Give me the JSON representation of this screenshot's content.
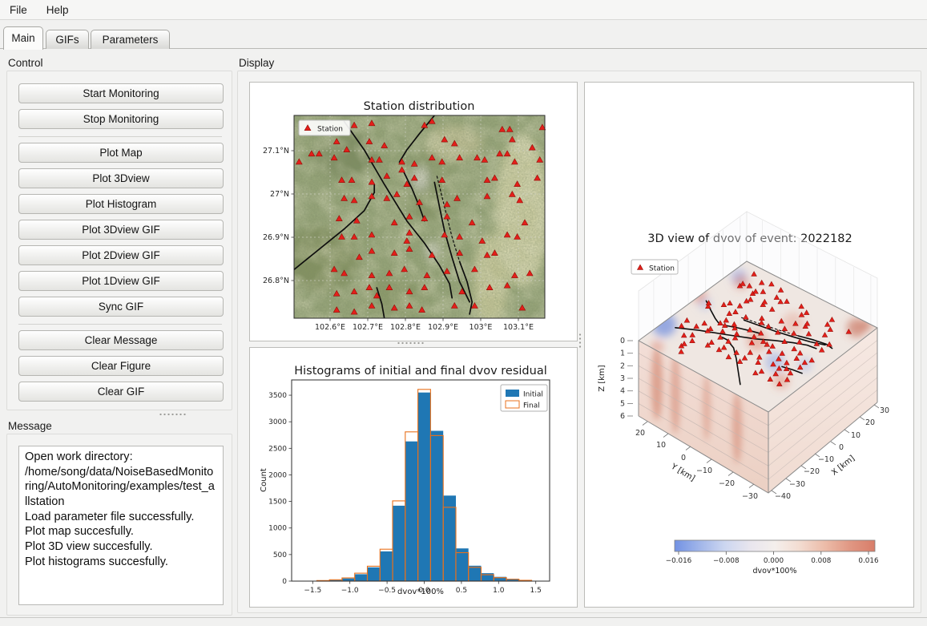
{
  "menu": {
    "items": [
      "File",
      "Help"
    ]
  },
  "tabs": [
    "Main",
    "GIFs",
    "Parameters"
  ],
  "active_tab": "Main",
  "sections": {
    "control": "Control",
    "message": "Message",
    "display": "Display"
  },
  "control": {
    "buttons": [
      "Start Monitoring",
      "Stop Monitoring",
      "Plot Map",
      "Plot 3Dview",
      "Plot Histogram",
      "Plot 3Dview GIF",
      "Plot 2Dview GIF",
      "Plot 1Dview GIF",
      "Sync GIF",
      "Clear Message",
      "Clear Figure",
      "Clear GIF"
    ]
  },
  "message": {
    "lines": [
      "Open work directory: /home/song/data/NoiseBasedMonitoring/AutoMonitoring/examples/test_allstation",
      "Load parameter file successfully.",
      "Plot map succesfully.",
      "Plot 3D view succesfully.",
      "Plot histograms succesfully."
    ]
  },
  "chart_data": [
    {
      "type": "scatter",
      "title": "Station distribution",
      "legend": [
        "Station"
      ],
      "x_tick_labels": [
        "102.6°E",
        "102.7°E",
        "102.8°E",
        "102.9°E",
        "103°E",
        "103.1°E"
      ],
      "y_tick_labels": [
        "27.1°N",
        "27°N",
        "26.9°N",
        "26.8°N"
      ],
      "marker": "red-triangle",
      "colors": {
        "station": "#e41f1a",
        "station_edge": "#8f0f08",
        "fault": "#0d0d0d"
      },
      "stations": [
        [
          0.24,
          0.05
        ],
        [
          0.31,
          0.04
        ],
        [
          0.52,
          0.05
        ],
        [
          0.55,
          0.03
        ],
        [
          0.83,
          0.07
        ],
        [
          0.86,
          0.07
        ],
        [
          0.99,
          0.06
        ],
        [
          0.17,
          0.13
        ],
        [
          0.3,
          0.13
        ],
        [
          0.36,
          0.15
        ],
        [
          0.6,
          0.12
        ],
        [
          0.64,
          0.14
        ],
        [
          0.87,
          0.12
        ],
        [
          0.95,
          0.16
        ],
        [
          0.02,
          0.23
        ],
        [
          0.07,
          0.19
        ],
        [
          0.1,
          0.19
        ],
        [
          0.16,
          0.21
        ],
        [
          0.21,
          0.17
        ],
        [
          0.31,
          0.22
        ],
        [
          0.34,
          0.22
        ],
        [
          0.43,
          0.23
        ],
        [
          0.48,
          0.24
        ],
        [
          0.55,
          0.21
        ],
        [
          0.59,
          0.23
        ],
        [
          0.66,
          0.21
        ],
        [
          0.73,
          0.21
        ],
        [
          0.76,
          0.22
        ],
        [
          0.82,
          0.19
        ],
        [
          0.85,
          0.19
        ],
        [
          0.88,
          0.23
        ],
        [
          0.98,
          0.22
        ],
        [
          0.19,
          0.32
        ],
        [
          0.23,
          0.32
        ],
        [
          0.31,
          0.33
        ],
        [
          0.37,
          0.3
        ],
        [
          0.43,
          0.27
        ],
        [
          0.45,
          0.34
        ],
        [
          0.48,
          0.31
        ],
        [
          0.59,
          0.32
        ],
        [
          0.77,
          0.32
        ],
        [
          0.8,
          0.31
        ],
        [
          0.89,
          0.34
        ],
        [
          0.97,
          0.31
        ],
        [
          0.2,
          0.41
        ],
        [
          0.24,
          0.42
        ],
        [
          0.31,
          0.4
        ],
        [
          0.37,
          0.41
        ],
        [
          0.41,
          0.39
        ],
        [
          0.5,
          0.43
        ],
        [
          0.61,
          0.44
        ],
        [
          0.65,
          0.41
        ],
        [
          0.77,
          0.4
        ],
        [
          0.87,
          0.39
        ],
        [
          0.9,
          0.42
        ],
        [
          0.18,
          0.51
        ],
        [
          0.25,
          0.52
        ],
        [
          0.4,
          0.53
        ],
        [
          0.46,
          0.5
        ],
        [
          0.52,
          0.51
        ],
        [
          0.61,
          0.5
        ],
        [
          0.71,
          0.53
        ],
        [
          0.92,
          0.53
        ],
        [
          0.19,
          0.6
        ],
        [
          0.24,
          0.6
        ],
        [
          0.31,
          0.59
        ],
        [
          0.45,
          0.62
        ],
        [
          0.46,
          0.58
        ],
        [
          0.6,
          0.59
        ],
        [
          0.66,
          0.6
        ],
        [
          0.75,
          0.62
        ],
        [
          0.85,
          0.59
        ],
        [
          0.89,
          0.6
        ],
        [
          0.26,
          0.7
        ],
        [
          0.31,
          0.67
        ],
        [
          0.4,
          0.68
        ],
        [
          0.46,
          0.66
        ],
        [
          0.55,
          0.69
        ],
        [
          0.66,
          0.68
        ],
        [
          0.77,
          0.69
        ],
        [
          0.8,
          0.68
        ],
        [
          0.16,
          0.76
        ],
        [
          0.2,
          0.78
        ],
        [
          0.31,
          0.79
        ],
        [
          0.38,
          0.78
        ],
        [
          0.44,
          0.76
        ],
        [
          0.53,
          0.79
        ],
        [
          0.61,
          0.77
        ],
        [
          0.72,
          0.76
        ],
        [
          0.88,
          0.79
        ],
        [
          0.94,
          0.78
        ],
        [
          0.17,
          0.88
        ],
        [
          0.24,
          0.87
        ],
        [
          0.3,
          0.85
        ],
        [
          0.33,
          0.89
        ],
        [
          0.38,
          0.85
        ],
        [
          0.46,
          0.87
        ],
        [
          0.52,
          0.85
        ],
        [
          0.67,
          0.87
        ],
        [
          0.78,
          0.85
        ],
        [
          0.85,
          0.84
        ],
        [
          0.17,
          0.96
        ],
        [
          0.24,
          0.97
        ],
        [
          0.31,
          0.94
        ],
        [
          0.4,
          0.95
        ],
        [
          0.46,
          0.94
        ],
        [
          0.51,
          0.96
        ],
        [
          0.64,
          0.94
        ],
        [
          0.72,
          0.94
        ],
        [
          0.91,
          0.95
        ]
      ],
      "faults": [
        {
          "pts": [
            [
              0.2,
              0.03
            ],
            [
              0.28,
              0.17
            ],
            [
              0.36,
              0.34
            ],
            [
              0.45,
              0.52
            ],
            [
              0.52,
              0.63
            ],
            [
              0.58,
              0.74
            ],
            [
              0.62,
              0.83
            ],
            [
              0.63,
              0.9
            ]
          ]
        },
        {
          "pts": [
            [
              0.56,
              0.0
            ],
            [
              0.5,
              0.09
            ],
            [
              0.45,
              0.17
            ],
            [
              0.42,
              0.23
            ]
          ]
        },
        {
          "pts": [
            [
              0.43,
              0.26
            ],
            [
              0.47,
              0.36
            ],
            [
              0.5,
              0.45
            ],
            [
              0.52,
              0.52
            ]
          ]
        },
        {
          "pts": [
            [
              0.56,
              0.33
            ],
            [
              0.58,
              0.45
            ],
            [
              0.6,
              0.57
            ],
            [
              0.63,
              0.7
            ],
            [
              0.66,
              0.82
            ],
            [
              0.7,
              0.92
            ]
          ]
        },
        {
          "pts": [
            [
              0.0,
              0.76
            ],
            [
              0.1,
              0.66
            ],
            [
              0.2,
              0.56
            ],
            [
              0.28,
              0.47
            ],
            [
              0.32,
              0.38
            ],
            [
              0.32,
              0.34
            ]
          ]
        },
        {
          "pts": [
            [
              0.33,
              0.85
            ],
            [
              0.35,
              0.93
            ],
            [
              0.36,
              1.0
            ]
          ]
        },
        {
          "pts": [
            [
              0.66,
              0.72
            ],
            [
              0.69,
              0.82
            ],
            [
              0.71,
              0.92
            ],
            [
              0.7,
              0.98
            ]
          ]
        },
        {
          "pts": [
            [
              0.57,
              0.3
            ],
            [
              0.6,
              0.45
            ],
            [
              0.63,
              0.6
            ],
            [
              0.66,
              0.72
            ]
          ],
          "dashed": true
        }
      ]
    },
    {
      "type": "bar",
      "title": "Histograms of initial and final dvov residual",
      "xlabel": "dvov*100%",
      "ylabel": "Count",
      "bin_centers": [
        -1.36,
        -1.19,
        -1.02,
        -0.85,
        -0.68,
        -0.51,
        -0.34,
        -0.17,
        0,
        0.17,
        0.34,
        0.51,
        0.68,
        0.85,
        1.02,
        1.19,
        1.36
      ],
      "series": [
        {
          "name": "Initial",
          "style": "fill",
          "color": "#1f77b4",
          "values": [
            8,
            20,
            50,
            130,
            260,
            560,
            1420,
            2630,
            3550,
            2830,
            1610,
            615,
            290,
            150,
            80,
            45,
            15
          ]
        },
        {
          "name": "Final",
          "style": "outline",
          "color": "#e8711c",
          "values": [
            10,
            25,
            60,
            150,
            280,
            600,
            1510,
            2810,
            3610,
            2740,
            1390,
            535,
            260,
            120,
            65,
            35,
            15
          ]
        }
      ],
      "xlim": [
        -1.78,
        1.69
      ],
      "ylim": [
        0,
        3790
      ],
      "x_ticks": [
        -1.5,
        -1.0,
        -0.5,
        0.0,
        0.5,
        1.0,
        1.5
      ],
      "x_tick_labels": [
        "−1.5",
        "−1.0",
        "−0.5",
        "0.0",
        "0.5",
        "1.0",
        "1.5"
      ],
      "y_ticks": [
        0,
        500,
        1000,
        1500,
        2000,
        2500,
        3000,
        3500
      ],
      "legend_position": "upper right"
    },
    {
      "type": "3d-volume",
      "title": "3D view of dvov of event: 2022182",
      "legend": [
        "Station"
      ],
      "z_label": "Z [km]",
      "z_ticks": [
        "0",
        "1",
        "2",
        "3",
        "4",
        "5",
        "6"
      ],
      "y_label": "Y [km]",
      "y_tick_labels": [
        "20",
        "10",
        "0",
        "−10",
        "−20",
        "−30"
      ],
      "x_label": "X [km]",
      "x_tick_labels": [
        "30",
        "20",
        "10",
        "0",
        "−10",
        "−20",
        "−30",
        "−40"
      ],
      "colorbar": {
        "label": "dvov*100%",
        "ticks": [
          "−0.016",
          "−0.008",
          "0.000",
          "0.008",
          "0.016"
        ]
      }
    }
  ]
}
